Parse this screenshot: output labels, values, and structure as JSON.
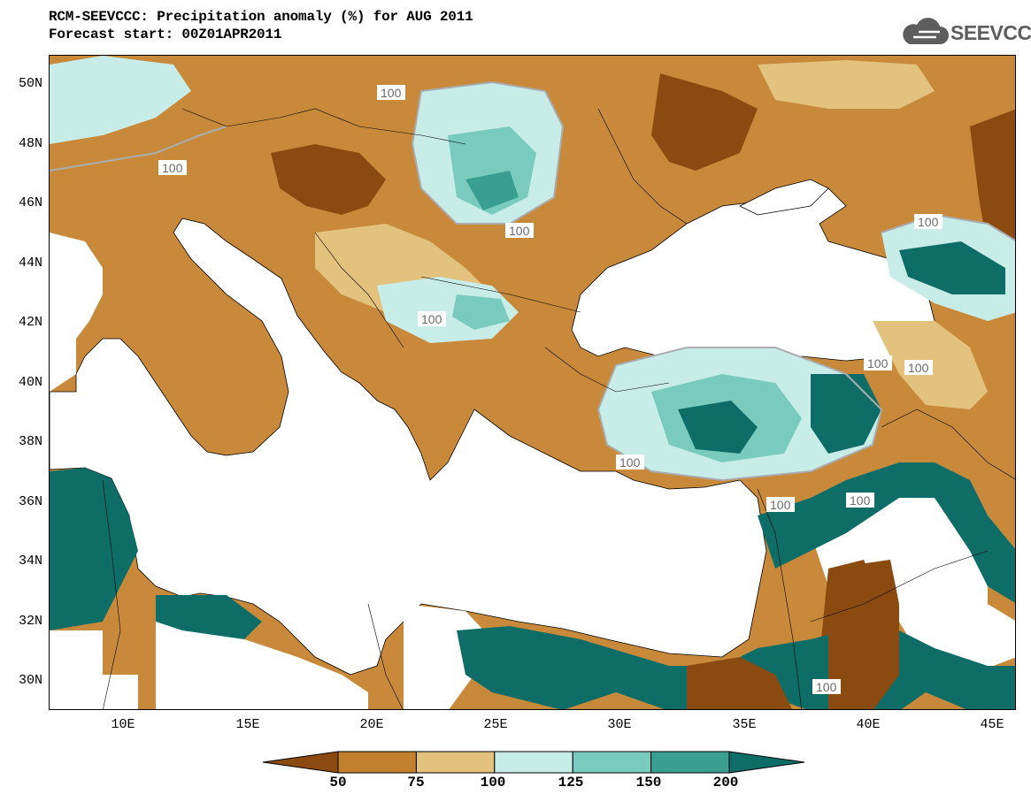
{
  "header": {
    "title": "RCM-SEEVCCC: Precipitation anomaly (%) for AUG 2011",
    "subtitle": "Forecast start: 00Z01APR2011",
    "logo_text": "SEEVCCC"
  },
  "map": {
    "lat_labels": [
      "50N",
      "48N",
      "46N",
      "44N",
      "42N",
      "40N",
      "38N",
      "36N",
      "34N",
      "32N",
      "30N"
    ],
    "lon_labels": [
      "10E",
      "15E",
      "20E",
      "25E",
      "30E",
      "35E",
      "40E",
      "45E"
    ],
    "contour_labels": [
      "100",
      "100",
      "100",
      "100",
      "100",
      "100",
      "100",
      "100",
      "100",
      "100",
      "100"
    ]
  },
  "colorbar": {
    "tick_labels": [
      "50",
      "75",
      "100",
      "125",
      "150",
      "200"
    ],
    "colors": [
      "#8b4b10",
      "#c1802e",
      "#e3c27e",
      "#c8ece8",
      "#78cbbd",
      "#3b9e93",
      "#0e6e67"
    ]
  },
  "colors": {
    "land_base": "#c88a3a",
    "sea": "#ffffff",
    "contour": "#a9adb0"
  }
}
